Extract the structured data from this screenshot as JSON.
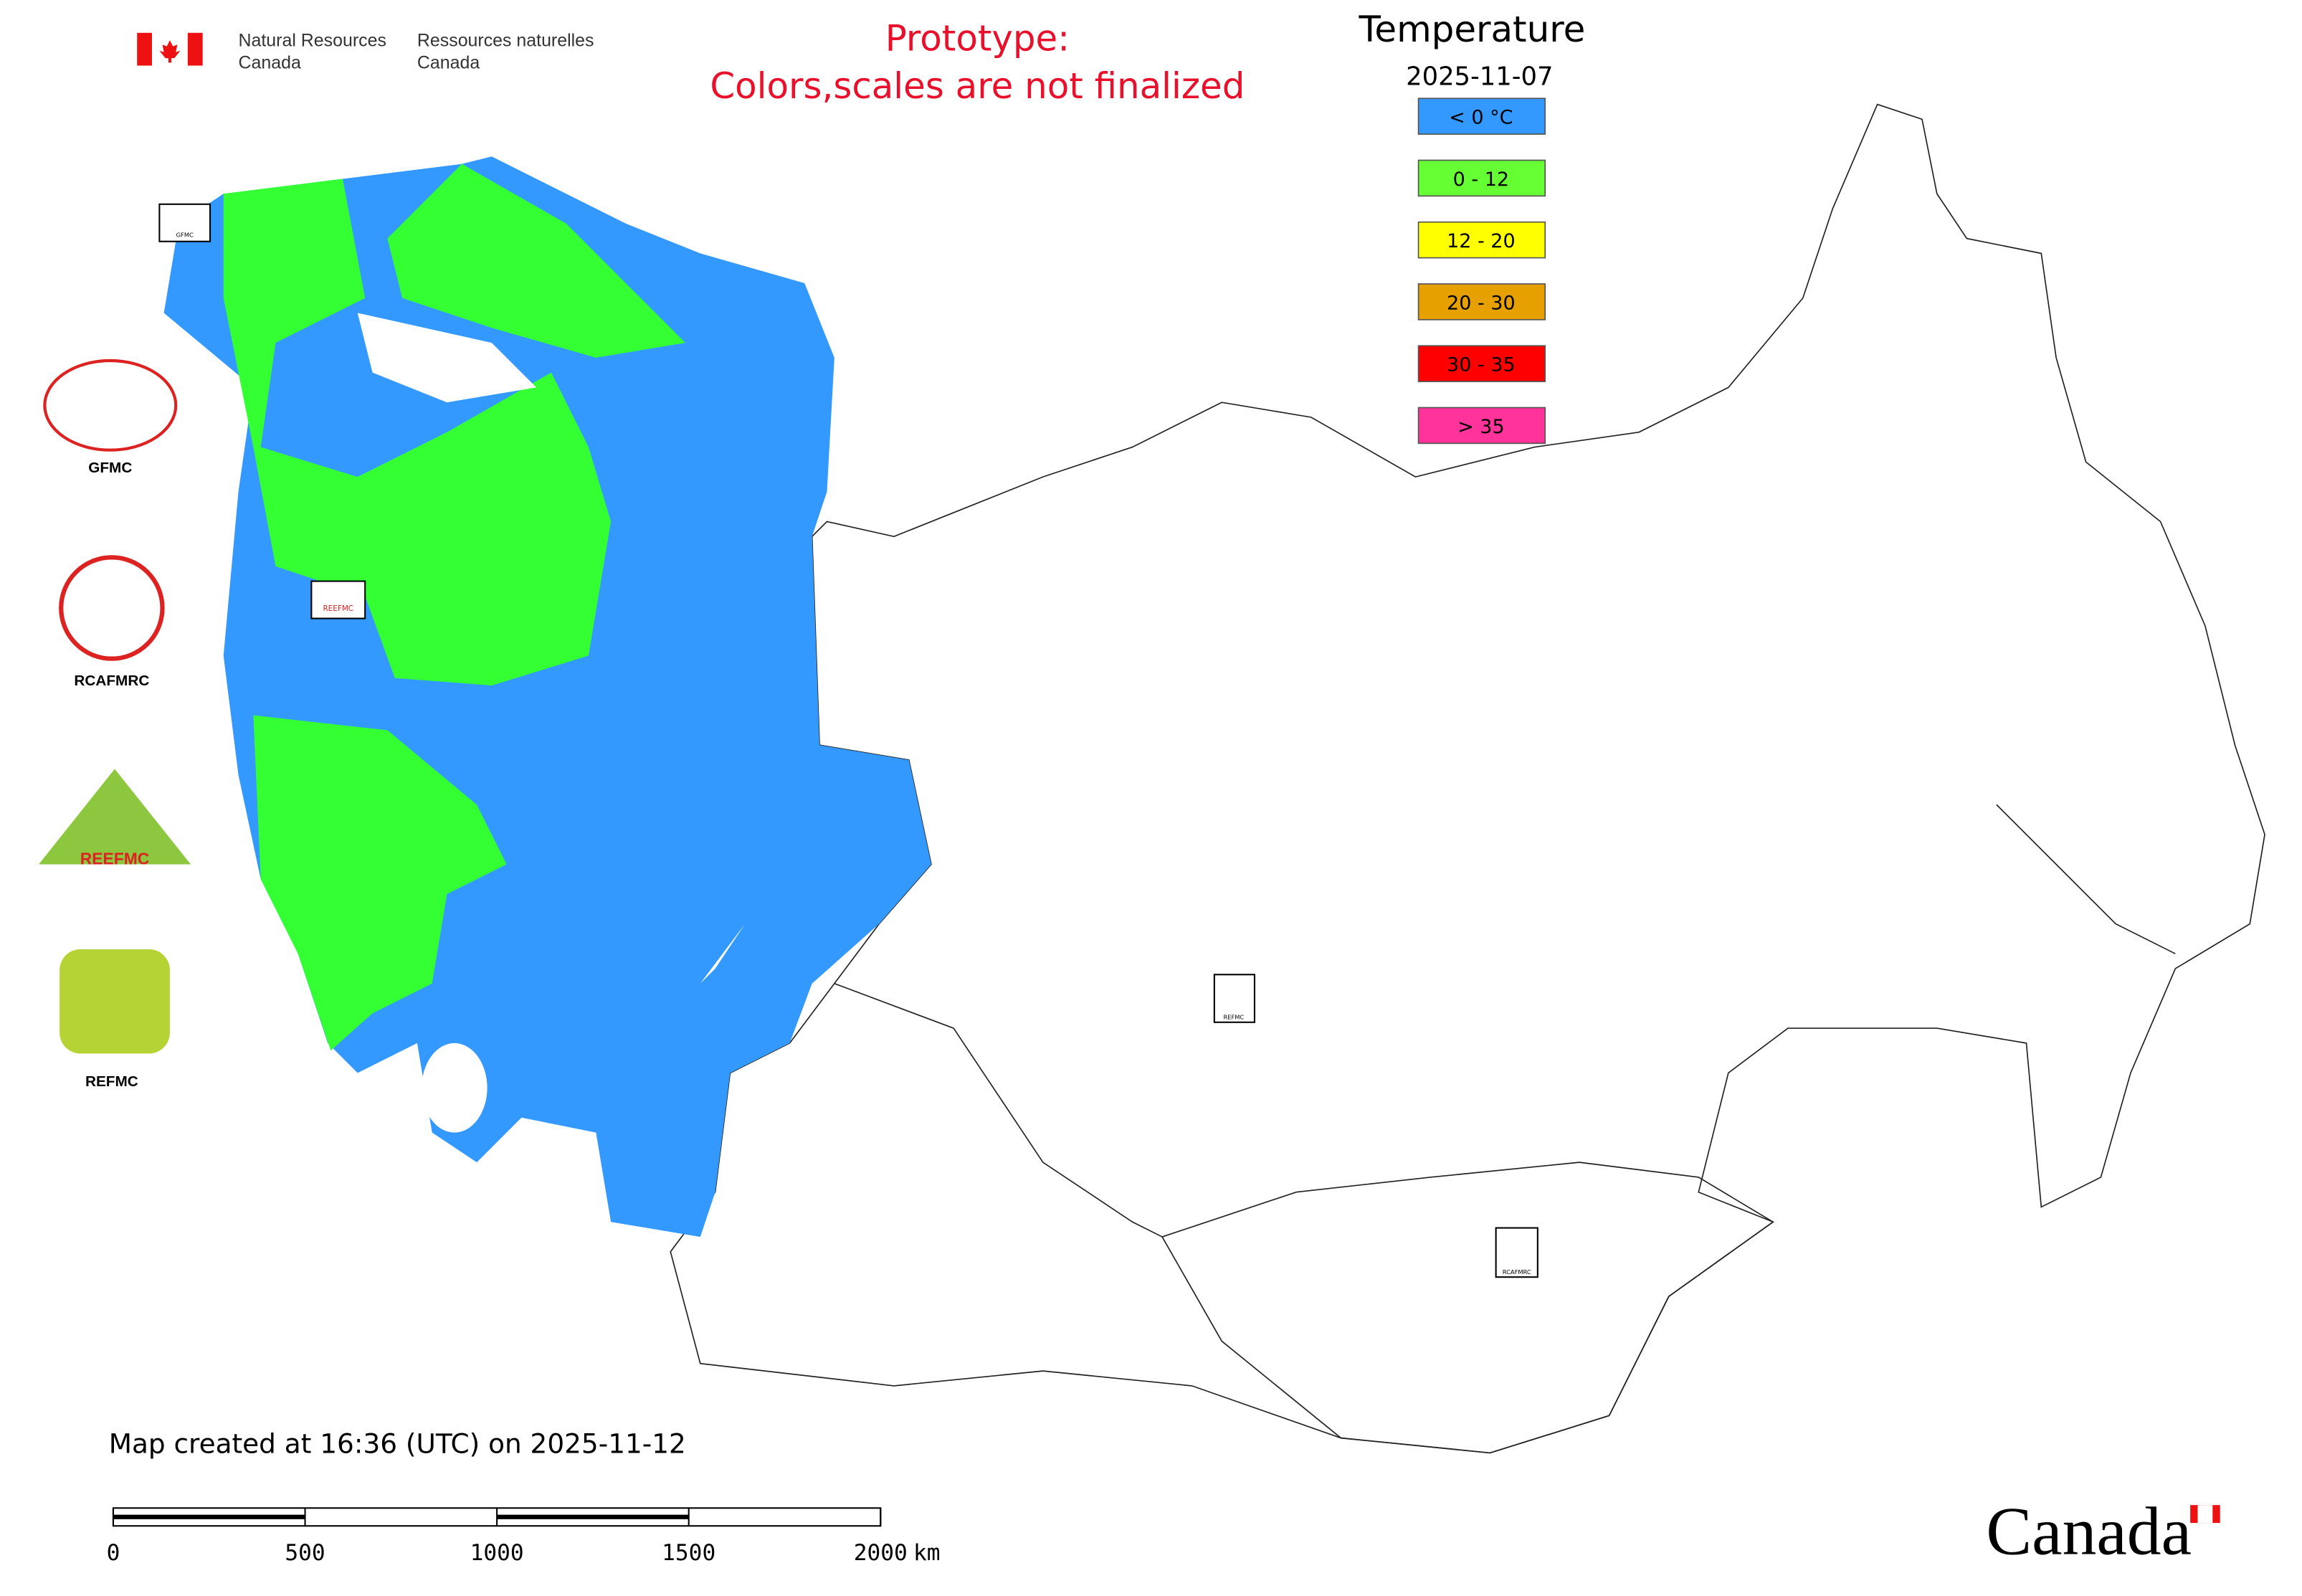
{
  "header": {
    "dept_en": [
      "Natural Resources",
      "Canada"
    ],
    "dept_fr": [
      "Ressources naturelles",
      "Canada"
    ]
  },
  "notice": [
    "Prototype:",
    "Colors,scales are not finalized"
  ],
  "legend": {
    "title": "Temperature",
    "date": "2025-11-07",
    "items": [
      {
        "label": "< 0 °C",
        "color": "#3399ff"
      },
      {
        "label": "0 - 12",
        "color": "#66ff33"
      },
      {
        "label": "12 - 20",
        "color": "#ffff00"
      },
      {
        "label": "20 - 30",
        "color": "#e6a000"
      },
      {
        "label": "30 - 35",
        "color": "#ff0000"
      },
      {
        "label": "> 35",
        "color": "#ff3399"
      }
    ]
  },
  "logos": [
    "GFMC",
    "RCAFMRC",
    "REEFMC",
    "REFMC"
  ],
  "map_markers": [
    "GFMC",
    "REEFMC",
    "REFMC",
    "RCAFMRC"
  ],
  "footer": {
    "created": "Map created at 16:36 (UTC) on 2025-11-12",
    "wordmark": "Canada"
  },
  "scale_bar": {
    "ticks": [
      0,
      500,
      1000,
      1500,
      2000
    ],
    "unit": "km"
  }
}
